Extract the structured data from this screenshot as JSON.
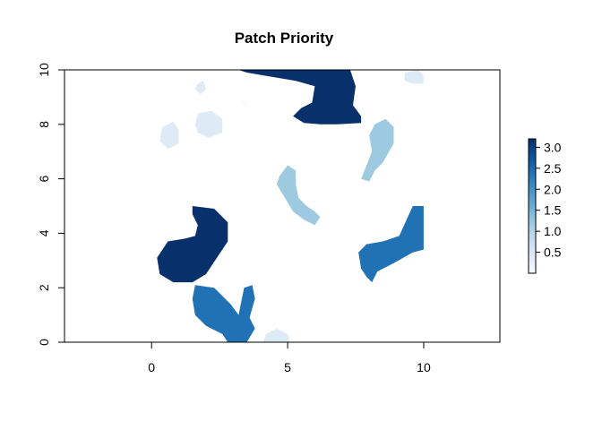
{
  "chart_data": {
    "type": "heatmap",
    "title": "Patch Priority",
    "xlabel": "",
    "ylabel": "",
    "xlim": [
      -3.2,
      12.8
    ],
    "ylim": [
      0,
      10
    ],
    "x_ticks": [
      0,
      5,
      10
    ],
    "y_ticks": [
      0,
      2,
      4,
      6,
      8,
      10
    ],
    "colorbar": {
      "range": [
        0,
        3.2
      ],
      "ticks": [
        0.5,
        1.0,
        1.5,
        2.0,
        2.5,
        3.0
      ],
      "tick_labels": [
        "0.5",
        "1.0",
        "1.5",
        "2.0",
        "2.5",
        "3.0"
      ],
      "colors": [
        "#f7fbff",
        "#deebf7",
        "#c6dbef",
        "#9ecae1",
        "#6baed6",
        "#4292c6",
        "#2171b5",
        "#08519c",
        "#08306b"
      ]
    },
    "patches": [
      {
        "value": 3.2,
        "points": [
          [
            3.2,
            10
          ],
          [
            7.3,
            10
          ],
          [
            7.5,
            9.4
          ],
          [
            7.4,
            8.7
          ],
          [
            7.7,
            8.3
          ],
          [
            7.7,
            8.05
          ],
          [
            6.8,
            8.0
          ],
          [
            6.2,
            8.0
          ],
          [
            5.6,
            8.05
          ],
          [
            5.2,
            8.3
          ],
          [
            5.5,
            8.6
          ],
          [
            5.9,
            8.8
          ],
          [
            6.0,
            9.4
          ],
          [
            5.3,
            9.6
          ],
          [
            4.1,
            9.8
          ],
          [
            3.5,
            9.9
          ]
        ]
      },
      {
        "value": 3.1,
        "points": [
          [
            1.5,
            5.0
          ],
          [
            2.3,
            4.9
          ],
          [
            2.8,
            4.4
          ],
          [
            2.8,
            3.7
          ],
          [
            2.4,
            3.1
          ],
          [
            2.0,
            2.5
          ],
          [
            1.5,
            2.2
          ],
          [
            0.8,
            2.2
          ],
          [
            0.3,
            2.5
          ],
          [
            0.2,
            3.1
          ],
          [
            0.6,
            3.7
          ],
          [
            1.2,
            3.8
          ],
          [
            1.6,
            3.9
          ],
          [
            1.7,
            4.3
          ],
          [
            1.5,
            4.7
          ]
        ]
      },
      {
        "value": 2.3,
        "points": [
          [
            1.6,
            2.1
          ],
          [
            2.3,
            2.0
          ],
          [
            2.9,
            1.4
          ],
          [
            3.2,
            1.0
          ],
          [
            3.3,
            1.5
          ],
          [
            3.4,
            2.0
          ],
          [
            3.7,
            2.1
          ],
          [
            3.8,
            1.6
          ],
          [
            3.6,
            0.9
          ],
          [
            3.8,
            0.5
          ],
          [
            3.5,
            0.0
          ],
          [
            2.8,
            0.0
          ],
          [
            2.6,
            0.3
          ],
          [
            2.0,
            0.6
          ],
          [
            1.6,
            1.0
          ],
          [
            1.5,
            1.6
          ]
        ]
      },
      {
        "value": 2.2,
        "points": [
          [
            9.6,
            5.0
          ],
          [
            10.0,
            5.0
          ],
          [
            10.0,
            3.4
          ],
          [
            9.6,
            3.3
          ],
          [
            8.9,
            2.9
          ],
          [
            8.3,
            2.6
          ],
          [
            8.1,
            2.2
          ],
          [
            7.9,
            2.4
          ],
          [
            7.7,
            2.7
          ],
          [
            7.6,
            3.3
          ],
          [
            7.9,
            3.6
          ],
          [
            8.5,
            3.7
          ],
          [
            9.1,
            3.9
          ]
        ]
      },
      {
        "value": 1.4,
        "points": [
          [
            8.2,
            8.0
          ],
          [
            8.6,
            8.2
          ],
          [
            8.9,
            7.9
          ],
          [
            8.9,
            7.3
          ],
          [
            8.5,
            6.6
          ],
          [
            8.2,
            6.3
          ],
          [
            8.0,
            5.9
          ],
          [
            7.7,
            6.0
          ],
          [
            7.9,
            6.5
          ],
          [
            8.1,
            7.0
          ],
          [
            8.0,
            7.6
          ]
        ]
      },
      {
        "value": 1.2,
        "points": [
          [
            4.7,
            6.1
          ],
          [
            5.0,
            6.5
          ],
          [
            5.3,
            6.3
          ],
          [
            5.3,
            5.8
          ],
          [
            5.4,
            5.3
          ],
          [
            5.7,
            5.0
          ],
          [
            6.0,
            4.8
          ],
          [
            6.2,
            4.6
          ],
          [
            6.0,
            4.3
          ],
          [
            5.6,
            4.5
          ],
          [
            5.2,
            4.8
          ],
          [
            4.9,
            5.3
          ],
          [
            4.6,
            5.8
          ]
        ]
      },
      {
        "value": 0.6,
        "points": [
          [
            1.7,
            8.4
          ],
          [
            2.2,
            8.5
          ],
          [
            2.6,
            8.2
          ],
          [
            2.6,
            7.7
          ],
          [
            2.1,
            7.5
          ],
          [
            1.7,
            7.7
          ],
          [
            1.6,
            8.0
          ]
        ]
      },
      {
        "value": 0.4,
        "points": [
          [
            0.4,
            7.9
          ],
          [
            0.8,
            8.1
          ],
          [
            1.0,
            7.8
          ],
          [
            1.0,
            7.3
          ],
          [
            0.6,
            7.1
          ],
          [
            0.3,
            7.4
          ]
        ]
      },
      {
        "value": 0.3,
        "points": [
          [
            9.3,
            9.9
          ],
          [
            9.8,
            10.0
          ],
          [
            10.0,
            9.8
          ],
          [
            10.0,
            9.5
          ],
          [
            9.6,
            9.5
          ],
          [
            9.3,
            9.6
          ]
        ]
      },
      {
        "value": 0.3,
        "points": [
          [
            4.2,
            0.3
          ],
          [
            4.6,
            0.5
          ],
          [
            5.0,
            0.3
          ],
          [
            5.1,
            0.0
          ],
          [
            4.1,
            0.0
          ]
        ]
      },
      {
        "value": 0.2,
        "points": [
          [
            1.7,
            9.5
          ],
          [
            1.9,
            9.6
          ],
          [
            2.0,
            9.3
          ],
          [
            1.8,
            9.1
          ],
          [
            1.6,
            9.3
          ]
        ]
      },
      {
        "value": 0.1,
        "points": [
          [
            3.3,
            8.9
          ],
          [
            3.5,
            8.9
          ],
          [
            3.5,
            8.7
          ],
          [
            3.3,
            8.7
          ]
        ]
      }
    ]
  }
}
